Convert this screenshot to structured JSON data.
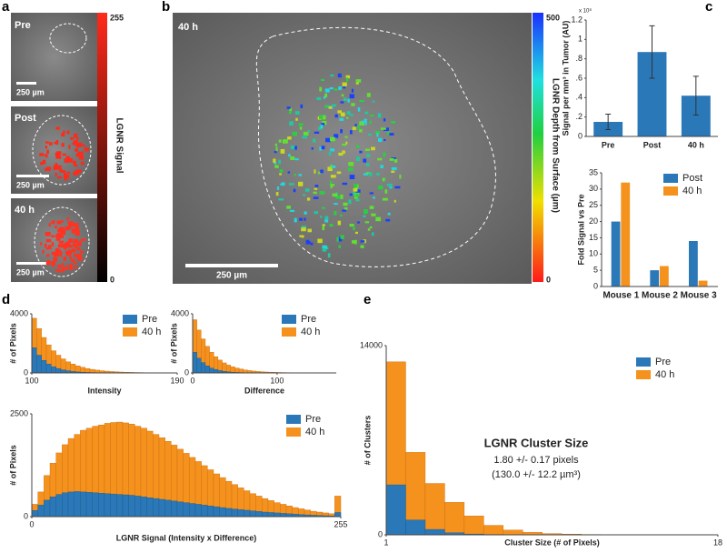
{
  "panel_labels": [
    "a",
    "b",
    "c",
    "d",
    "e"
  ],
  "panel_a": {
    "images": [
      "Pre",
      "Post",
      "40 h"
    ],
    "scale_bars": [
      "250 µm",
      "250 µm",
      "250 µm"
    ],
    "colorbar": {
      "label": "LGNR Signal",
      "max": 255,
      "min": 0
    }
  },
  "panel_b": {
    "image": "40 h",
    "scale_bar": "250 µm",
    "colorbar": {
      "label": "LGNR Depth from Surface (µm)",
      "max": 500,
      "min": 0
    }
  },
  "chart_data": [
    {
      "type": "bar",
      "y_exponent": "x 10⁸",
      "ylabel": "Signal per mm³ in Tumor (AU)",
      "categories": [
        "Pre",
        "Post",
        "40 h"
      ],
      "values": [
        0.15,
        0.87,
        0.42
      ],
      "errors": [
        0.08,
        0.27,
        0.2
      ],
      "color": "#2a78b8",
      "ylim": [
        0,
        1.2
      ],
      "yticks": [
        0,
        {
          "value": 0.2,
          "label": ".2"
        },
        {
          "value": 0.4,
          "label": ".4"
        },
        {
          "value": 0.6,
          "label": ".6"
        },
        {
          "value": 0.8,
          "label": ".8"
        },
        1,
        1.2
      ]
    },
    {
      "type": "groupedbar",
      "ylabel": "Fold Signal vs Pre",
      "categories": [
        "Mouse 1",
        "Mouse 2",
        "Mouse 3"
      ],
      "series": [
        {
          "name": "Post",
          "color": "#2a78b8",
          "values": [
            20,
            5,
            14
          ]
        },
        {
          "name": "40 h",
          "color": "#f5921e",
          "values": [
            32,
            6.3,
            1.8
          ]
        }
      ],
      "ylim": [
        0,
        35
      ],
      "yticks": [
        0,
        5,
        10,
        15,
        20,
        25,
        30,
        35
      ],
      "legend": "upper right"
    },
    {
      "type": "histogram",
      "ylabel": "# of Pixels",
      "xlabel": "Intensity",
      "bins": [
        100,
        103,
        106,
        109,
        112,
        115,
        118,
        121,
        124,
        127,
        130,
        133,
        136,
        139,
        142,
        145,
        148,
        151,
        154,
        157,
        160,
        163,
        166,
        169,
        172,
        175,
        178,
        181,
        184,
        187,
        190
      ],
      "series": [
        {
          "name": "Pre",
          "color": "#2a78b8",
          "values": [
            1700,
            1200,
            850,
            600,
            420,
            300,
            210,
            150,
            100,
            70,
            50,
            35,
            25,
            18,
            12,
            9,
            6,
            4,
            3,
            2,
            1,
            1,
            0,
            0,
            0,
            0,
            0,
            0,
            0,
            0
          ]
        },
        {
          "name": "40 h",
          "color": "#f5921e",
          "values": [
            3700,
            3000,
            2400,
            1900,
            1500,
            1200,
            950,
            750,
            600,
            480,
            380,
            300,
            240,
            190,
            150,
            120,
            95,
            75,
            60,
            48,
            38,
            30,
            24,
            19,
            15,
            12,
            9,
            7,
            5,
            4
          ]
        }
      ],
      "xlim": [
        100,
        190
      ],
      "xticks": [
        100,
        190
      ],
      "ylim": [
        0,
        4000
      ],
      "yticks": [
        0,
        4000
      ],
      "legend": "upper right"
    },
    {
      "type": "histogram",
      "ylabel": "# of Pixels",
      "xlabel": "Difference",
      "bins": [
        0,
        5,
        10,
        15,
        20,
        25,
        30,
        35,
        40,
        45,
        50,
        55,
        60,
        65,
        70,
        75,
        80,
        85,
        90,
        95,
        100,
        105,
        110,
        115,
        120,
        125,
        130,
        135,
        140,
        145,
        150,
        155,
        160,
        165,
        170
      ],
      "series": [
        {
          "name": "Pre",
          "color": "#2a78b8",
          "values": [
            1400,
            1000,
            700,
            480,
            330,
            230,
            160,
            110,
            75,
            50,
            35,
            24,
            16,
            11,
            8,
            5,
            4,
            3,
            2,
            1,
            1,
            1,
            0,
            0,
            0,
            0,
            0,
            0,
            0,
            0,
            0,
            0,
            0,
            0
          ]
        },
        {
          "name": "40 h",
          "color": "#f5921e",
          "values": [
            3600,
            2900,
            2300,
            1800,
            1400,
            1100,
            870,
            680,
            530,
            420,
            330,
            260,
            200,
            160,
            125,
            100,
            80,
            62,
            50,
            40,
            32,
            25,
            20,
            16,
            12,
            10,
            8,
            6,
            5,
            4,
            3,
            2,
            2,
            1
          ]
        }
      ],
      "xlim": [
        0,
        170
      ],
      "xticks": [
        0,
        100
      ],
      "ylim": [
        0,
        4000
      ],
      "yticks": [
        0,
        4000
      ],
      "legend": "upper right"
    },
    {
      "type": "histogram",
      "ylabel": "# of Pixels",
      "xlabel": "LGNR Signal (Intensity x Difference)",
      "bins": [
        0,
        5,
        10,
        15,
        20,
        25,
        30,
        35,
        40,
        45,
        50,
        55,
        60,
        65,
        70,
        75,
        80,
        85,
        90,
        95,
        100,
        105,
        110,
        115,
        120,
        125,
        130,
        135,
        140,
        145,
        150,
        155,
        160,
        165,
        170,
        175,
        180,
        185,
        190,
        195,
        200,
        205,
        210,
        215,
        220,
        225,
        230,
        235,
        240,
        245,
        250,
        255
      ],
      "series": [
        {
          "name": "Pre",
          "color": "#2a78b8",
          "values": [
            150,
            280,
            400,
            480,
            540,
            580,
            600,
            610,
            600,
            590,
            580,
            570,
            560,
            550,
            540,
            530,
            520,
            500,
            480,
            460,
            440,
            420,
            400,
            380,
            360,
            340,
            320,
            300,
            280,
            260,
            240,
            220,
            200,
            185,
            170,
            155,
            140,
            125,
            110,
            100,
            90,
            80,
            70,
            60,
            50,
            42,
            35,
            28,
            22,
            16,
            100
          ]
        },
        {
          "name": "40 h",
          "color": "#f5921e",
          "values": [
            300,
            600,
            1000,
            1300,
            1550,
            1750,
            1900,
            2000,
            2100,
            2150,
            2200,
            2230,
            2270,
            2290,
            2300,
            2280,
            2250,
            2200,
            2150,
            2080,
            2000,
            1920,
            1830,
            1740,
            1640,
            1540,
            1440,
            1340,
            1240,
            1140,
            1040,
            950,
            860,
            780,
            700,
            630,
            560,
            500,
            440,
            390,
            340,
            300,
            260,
            220,
            190,
            160,
            130,
            110,
            90,
            70,
            500
          ]
        }
      ],
      "xlim": [
        0,
        255
      ],
      "xticks": [
        0,
        255
      ],
      "ylim": [
        0,
        2500
      ],
      "yticks": [
        0,
        2500
      ],
      "legend": "upper right"
    },
    {
      "type": "histogram",
      "ylabel": "# of Clusters",
      "xlabel": "Cluster Size (# of Pixels)",
      "annotations": [
        "LGNR Cluster Size",
        "1.80 +/- 0.17 pixels",
        "(130.0 +/- 12.2 µm³)"
      ],
      "bins": [
        1,
        2,
        3,
        4,
        5,
        6,
        7,
        8,
        9,
        10,
        11,
        12,
        13,
        14,
        15,
        16,
        17,
        18
      ],
      "series": [
        {
          "name": "Pre",
          "color": "#2a78b8",
          "values": [
            3700,
            1100,
            400,
            150,
            60,
            25,
            10,
            5,
            2,
            1,
            0,
            0,
            0,
            0,
            0,
            0,
            0
          ]
        },
        {
          "name": "40 h",
          "color": "#f5921e",
          "values": [
            12800,
            6100,
            3800,
            2400,
            1400,
            700,
            350,
            180,
            90,
            50,
            25,
            15,
            8,
            5,
            3,
            2,
            1
          ]
        }
      ],
      "xlim": [
        1,
        18
      ],
      "xticks": [
        1,
        18
      ],
      "ylim": [
        0,
        14000
      ],
      "yticks": [
        0,
        14000
      ],
      "legend": "upper right"
    }
  ]
}
